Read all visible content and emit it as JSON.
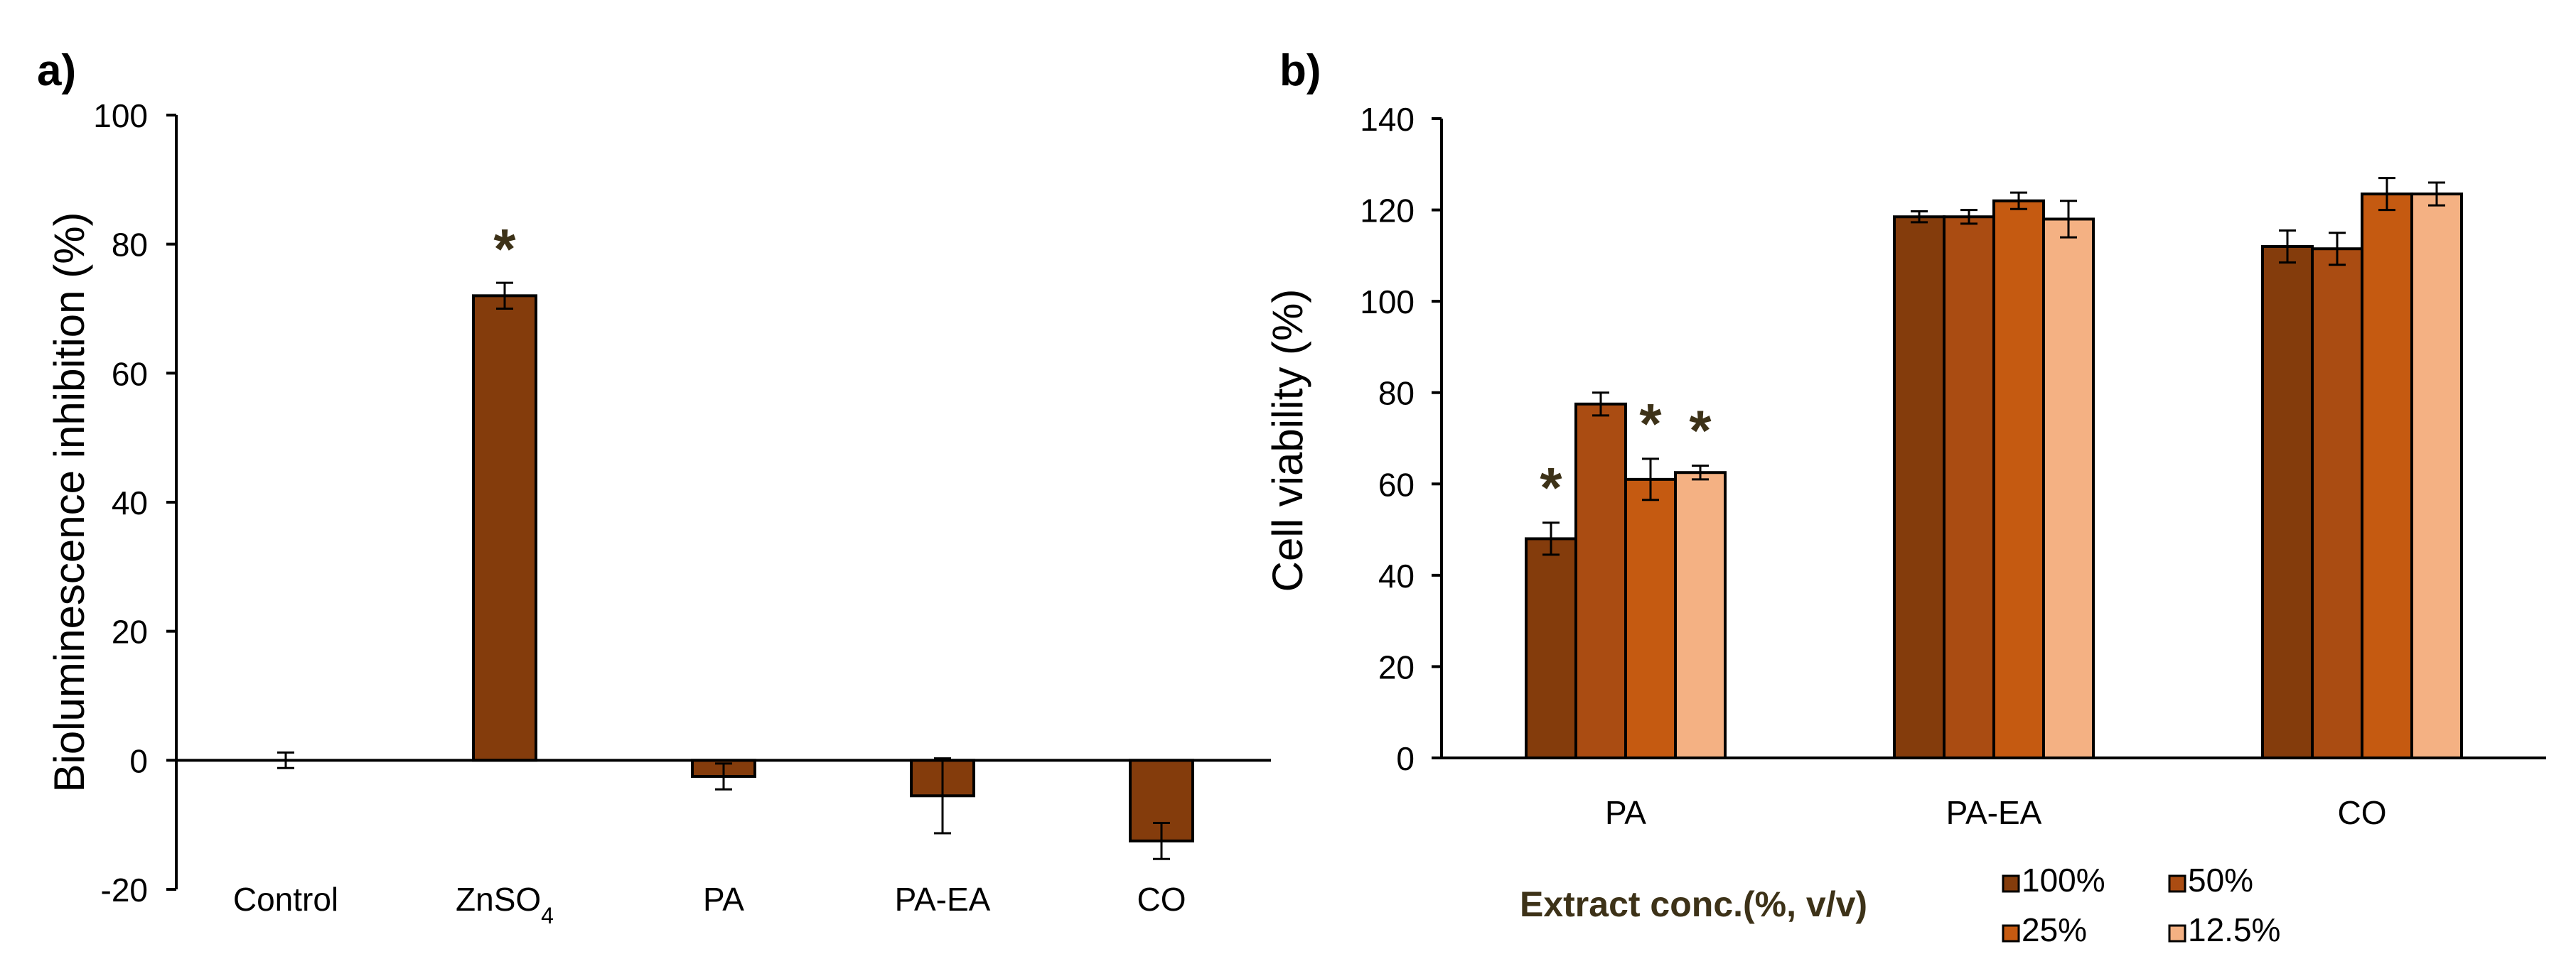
{
  "chart_data": [
    {
      "panel_label": "a)",
      "type": "bar",
      "title": "",
      "xlabel": "",
      "ylabel": "Bioluminescence inhibition (%)",
      "ylim": [
        -20,
        100
      ],
      "yticks": [
        -20,
        0,
        20,
        40,
        60,
        80,
        100
      ],
      "ytick_labels": [
        "-20",
        "0",
        "20",
        "40",
        "60",
        "80",
        "100"
      ],
      "grid": false,
      "categories": [
        "Control",
        "ZnSO4",
        "PA",
        "PA-EA",
        "CO"
      ],
      "category_labels": [
        {
          "text": "Control"
        },
        {
          "text": "ZnSO",
          "sub": "4"
        },
        {
          "text": "PA"
        },
        {
          "text": "PA-EA"
        },
        {
          "text": "CO"
        }
      ],
      "values": [
        0,
        72,
        -2.5,
        -5.5,
        -12.5
      ],
      "errors": [
        1.2,
        2.0,
        2.0,
        5.8,
        2.8
      ],
      "significance": [
        "",
        "*",
        "",
        "",
        ""
      ],
      "color": "#843C0C"
    },
    {
      "panel_label": "b)",
      "type": "bar",
      "title": "",
      "xlabel": "",
      "ylabel": "Cell viability  (%)",
      "ylim": [
        0,
        140
      ],
      "yticks": [
        0,
        20,
        40,
        60,
        80,
        100,
        120,
        140
      ],
      "ytick_labels": [
        "0",
        "20",
        "40",
        "60",
        "80",
        "100",
        "120",
        "140"
      ],
      "grid": false,
      "categories": [
        "PA",
        "PA-EA",
        "CO"
      ],
      "series": [
        {
          "name": "100%",
          "color": "#843C0C",
          "values": [
            48,
            118.5,
            112
          ],
          "errors": [
            3.5,
            1.2,
            3.5
          ],
          "significance": [
            "*",
            "",
            ""
          ]
        },
        {
          "name": "50%",
          "color": "#AA4C12",
          "values": [
            77.5,
            118.5,
            111.5
          ],
          "errors": [
            2.5,
            1.5,
            3.5
          ],
          "significance": [
            "",
            "",
            ""
          ]
        },
        {
          "name": "25%",
          "color": "#C55A11",
          "values": [
            61,
            122,
            123.5
          ],
          "errors": [
            4.5,
            1.8,
            3.5
          ],
          "significance": [
            "*",
            "",
            ""
          ]
        },
        {
          "name": "12.5%",
          "color": "#F4B183",
          "values": [
            62.5,
            118,
            123.5
          ],
          "errors": [
            1.5,
            4.0,
            2.5
          ],
          "significance": [
            "*",
            "",
            ""
          ]
        }
      ],
      "legend": {
        "title": "Extract conc.(%, v/v)",
        "position": "bottom-right"
      }
    }
  ]
}
